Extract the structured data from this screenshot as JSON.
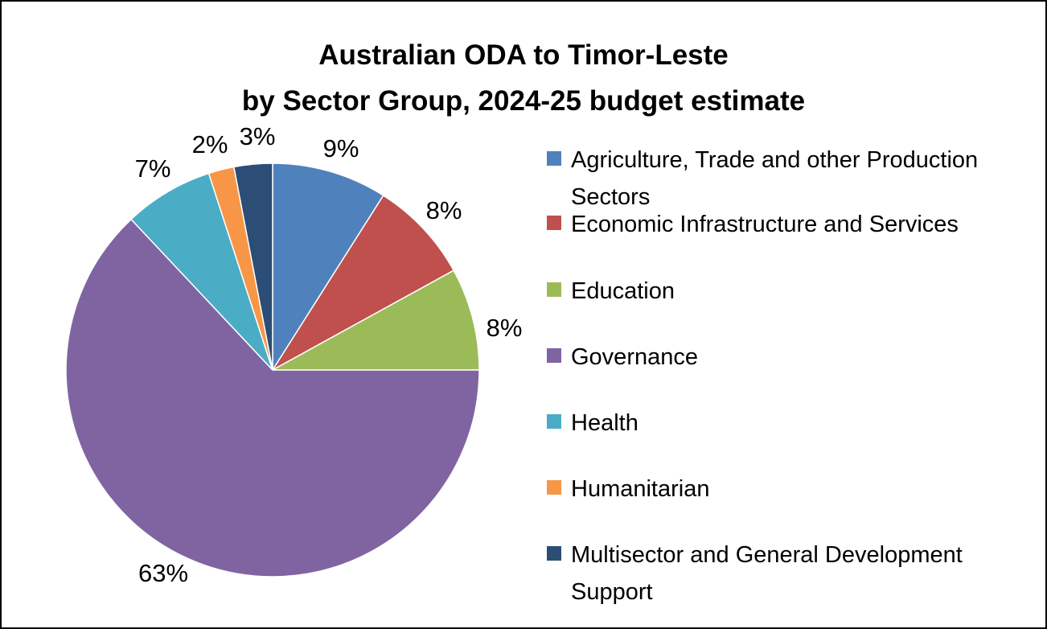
{
  "chart_data": {
    "type": "pie",
    "title": [
      "Australian ODA to Timor-Leste",
      "by Sector Group, 2024-25 budget estimate"
    ],
    "legend_position": "right",
    "slices": [
      {
        "label": "Agriculture, Trade and other Production Sectors",
        "value": 9,
        "display": "9%",
        "color": "#4F81BD"
      },
      {
        "label": "Economic Infrastructure and Services",
        "value": 8,
        "display": "8%",
        "color": "#C0504D"
      },
      {
        "label": "Education",
        "value": 8,
        "display": "8%",
        "color": "#9BBB59"
      },
      {
        "label": "Governance",
        "value": 63,
        "display": "63%",
        "color": "#8064A2"
      },
      {
        "label": "Health",
        "value": 7,
        "display": "7%",
        "color": "#4BACC6"
      },
      {
        "label": "Humanitarian",
        "value": 2,
        "display": "2%",
        "color": "#F79646"
      },
      {
        "label": "Multisector and General Development Support",
        "value": 3,
        "display": "3%",
        "color": "#2C4D75"
      }
    ]
  }
}
